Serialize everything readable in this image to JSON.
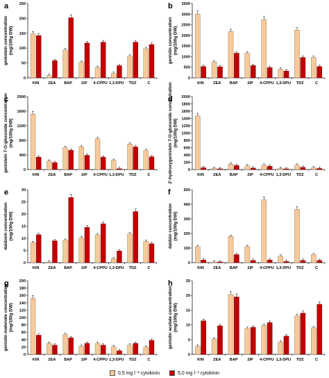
{
  "colors": {
    "series_low": "#f7c99b",
    "series_high": "#c00000",
    "axis": "#000000"
  },
  "legend": [
    {
      "label": "0,5 mg l⁻¹ cytokinin",
      "color": "#f7c99b"
    },
    {
      "label": "5,0 mg l⁻¹ cytokinin",
      "color": "#c00000"
    }
  ],
  "chart_data": [
    {
      "panel": "a",
      "type": "bar",
      "ylabel": "genistein concentration (mg/100g DW)",
      "ylim": [
        0,
        250
      ],
      "yticks": [
        0,
        50,
        100,
        150,
        200,
        250
      ],
      "categories": [
        "KIN",
        "ZEA",
        "BAP",
        "2iP",
        "4-CPPU",
        "1,3-DPU",
        "TDZ",
        "C"
      ],
      "series": [
        {
          "name": "0,5 mg l⁻¹ cytokinin",
          "values": [
            148,
            8,
            94,
            52,
            35,
            15,
            73,
            98
          ]
        },
        {
          "name": "5,0 mg l⁻¹ cytokinin",
          "values": [
            142,
            58,
            202,
            117,
            120,
            41,
            120,
            112
          ]
        }
      ]
    },
    {
      "panel": "b",
      "type": "bar",
      "ylabel": "genistin concentration (mg/100g DW)",
      "ylim": [
        0,
        3500
      ],
      "yticks": [
        0,
        500,
        1000,
        1500,
        2000,
        2500,
        3000,
        3500
      ],
      "categories": [
        "KIN",
        "ZEA",
        "BAP",
        "2iP",
        "4-CPPU",
        "1,3-DPU",
        "TDZ",
        "C"
      ],
      "series": [
        {
          "name": "0,5 mg l⁻¹ cytokinin",
          "values": [
            3000,
            750,
            2180,
            1160,
            2740,
            400,
            2250,
            960
          ]
        },
        {
          "name": "5,0 mg l⁻¹ cytokinin",
          "values": [
            530,
            520,
            1160,
            580,
            480,
            320,
            960,
            530
          ]
        }
      ]
    },
    {
      "panel": "c",
      "type": "bar",
      "ylabel": "genistein 7-O-glucoside concentration (mg/100g DW)",
      "ylim": [
        0,
        2000
      ],
      "yticks": [
        0,
        400,
        800,
        1200,
        1600,
        2000
      ],
      "categories": [
        "KIN",
        "ZEA",
        "BAP",
        "2iP",
        "4-CPPU",
        "1,3-DPU",
        "TDZ",
        "C"
      ],
      "series": [
        {
          "name": "0,5 mg l⁻¹ cytokinin",
          "values": [
            1520,
            230,
            600,
            620,
            840,
            250,
            700,
            520
          ]
        },
        {
          "name": "5,0 mg l⁻¹ cytokinin",
          "values": [
            340,
            190,
            530,
            390,
            340,
            25,
            620,
            350
          ]
        }
      ]
    },
    {
      "panel": "d",
      "type": "bar",
      "ylabel": "2'-hydroxygenistein 7-O-glucoside concentration (mg/100g DW)",
      "ylim": [
        0,
        2000
      ],
      "yticks": [
        0,
        200,
        400,
        600,
        800,
        1000,
        1200,
        1400,
        1600,
        1800,
        2000
      ],
      "categories": [
        "KIN",
        "ZEA",
        "BAP",
        "2iP",
        "4-CPPU",
        "1,3-DPU",
        "TDZ",
        "C"
      ],
      "series": [
        {
          "name": "0,5 mg l⁻¹ cytokinin",
          "values": [
            1470,
            30,
            150,
            100,
            120,
            30,
            120,
            50
          ]
        },
        {
          "name": "5,0 mg l⁻¹ cytokinin",
          "values": [
            50,
            20,
            110,
            40,
            90,
            20,
            60,
            30
          ]
        }
      ]
    },
    {
      "panel": "e",
      "type": "bar",
      "ylabel": "daidzein concentration (mg/100g DW)",
      "ylim": [
        0,
        30
      ],
      "yticks": [
        0,
        5,
        10,
        15,
        20,
        25,
        30
      ],
      "categories": [
        "KIN",
        "ZEA",
        "BAP",
        "2iP",
        "4-CPPU",
        "1,3-DPU",
        "TDZ",
        "C"
      ],
      "series": [
        {
          "name": "0,5 mg l⁻¹ cytokinin",
          "values": [
            8.2,
            0.3,
            9.2,
            10.2,
            11.4,
            1.6,
            11.8,
            8.8
          ]
        },
        {
          "name": "5,0 mg l⁻¹ cytokinin",
          "values": [
            11.5,
            9.0,
            26.8,
            14.5,
            16.0,
            4.8,
            21.0,
            7.8
          ]
        }
      ]
    },
    {
      "panel": "f",
      "type": "bar",
      "ylabel": "daidzin concentration (mg/100g DW)",
      "ylim": [
        0,
        500
      ],
      "yticks": [
        0,
        100,
        200,
        300,
        400,
        500
      ],
      "categories": [
        "KIN",
        "ZEA",
        "BAP",
        "2iP",
        "4-CPPU",
        "1,3-DPU",
        "TDZ",
        "C"
      ],
      "series": [
        {
          "name": "0,5 mg l⁻¹ cytokinin",
          "values": [
            110,
            5,
            180,
            110,
            430,
            45,
            365,
            55
          ]
        },
        {
          "name": "5,0 mg l⁻¹ cytokinin",
          "values": [
            18,
            5,
            55,
            15,
            18,
            8,
            15,
            15
          ]
        }
      ]
    },
    {
      "panel": "g",
      "type": "bar",
      "ylabel": "genistin malonate concentration (mg/100g DW)",
      "ylim": [
        0,
        200
      ],
      "yticks": [
        0,
        20,
        40,
        60,
        80,
        100,
        120,
        140,
        160,
        180,
        200
      ],
      "categories": [
        "KIN",
        "ZEA",
        "BAP",
        "2iP",
        "4-CPPU",
        "1,3-DPU",
        "TDZ",
        "C"
      ],
      "series": [
        {
          "name": "0,5 mg l⁻¹ cytokinin",
          "values": [
            152,
            30,
            54,
            22,
            30,
            21,
            25,
            20
          ]
        },
        {
          "name": "5,0 mg l⁻¹ cytokinin",
          "values": [
            52,
            25,
            45,
            30,
            25,
            10,
            30,
            38
          ]
        }
      ]
    },
    {
      "panel": "h",
      "type": "bar",
      "ylabel": "genistin acetate concentration (mg/100g DW)",
      "ylim": [
        0,
        25
      ],
      "yticks": [
        0,
        5,
        10,
        15,
        20,
        25
      ],
      "categories": [
        "KIN",
        "ZEA",
        "BAP",
        "2iP",
        "4-CPPU",
        "1,3-DPU",
        "TDZ",
        "C"
      ],
      "series": [
        {
          "name": "0,5 mg l⁻¹ cytokinin",
          "values": [
            2.8,
            5.2,
            20.3,
            8.8,
            9.8,
            4.2,
            13.0,
            9.0
          ]
        },
        {
          "name": "5,0 mg l⁻¹ cytokinin",
          "values": [
            11.4,
            9.7,
            19.5,
            9.2,
            10.8,
            6.2,
            14.0,
            17.0
          ]
        }
      ]
    }
  ]
}
